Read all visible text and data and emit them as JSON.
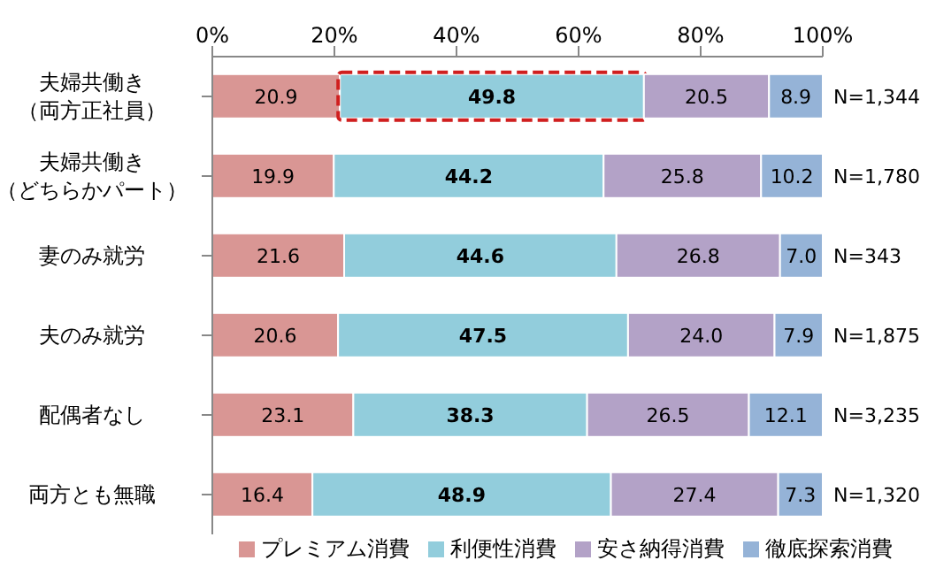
{
  "chart_data": {
    "type": "bar",
    "orientation": "horizontal",
    "stacked": true,
    "categories": [
      "夫婦共働き（両方正社員）",
      "夫婦共働き（どちらかパート）",
      "妻のみ就労",
      "夫のみ就労",
      "配偶者なし",
      "両方とも無職"
    ],
    "series": [
      {
        "name": "プレミアム消費",
        "color": "#d99694",
        "values": [
          20.9,
          19.9,
          21.6,
          20.6,
          23.1,
          16.4
        ],
        "value_labels": [
          "20.9",
          "19.9",
          "21.6",
          "20.6",
          "23.1",
          "16.4"
        ]
      },
      {
        "name": "利便性消費",
        "color": "#92cddc",
        "values": [
          49.8,
          44.2,
          44.6,
          47.5,
          38.3,
          48.9
        ],
        "value_labels": [
          "49.8",
          "44.2",
          "44.6",
          "47.5",
          "38.3",
          "48.9"
        ]
      },
      {
        "name": "安さ納得消費",
        "color": "#b3a2c7",
        "values": [
          20.5,
          25.8,
          26.8,
          24.0,
          26.5,
          27.4
        ],
        "value_labels": [
          "20.5",
          "25.8",
          "26.8",
          "24.0",
          "26.5",
          "27.4"
        ]
      },
      {
        "name": "徹底探索消費",
        "color": "#95b3d7",
        "values": [
          8.9,
          10.2,
          7.0,
          7.9,
          12.1,
          7.3
        ],
        "value_labels": [
          "8.9",
          "10.2",
          "7.0",
          "7.9",
          "12.1",
          "7.3"
        ]
      }
    ],
    "xlim": [
      0,
      100
    ],
    "xticks": [
      {
        "value": 0,
        "label": "0%"
      },
      {
        "value": 20,
        "label": "20%"
      },
      {
        "value": 40,
        "label": "40%"
      },
      {
        "value": 60,
        "label": "60%"
      },
      {
        "value": 80,
        "label": "80%"
      },
      {
        "value": 100,
        "label": "100%"
      }
    ],
    "legend": "bottom",
    "grid": false,
    "annotations": [
      "N=1,344",
      "N=1,780",
      "N=343",
      "N=1,875",
      "N=3,235",
      "N=1,320"
    ]
  }
}
